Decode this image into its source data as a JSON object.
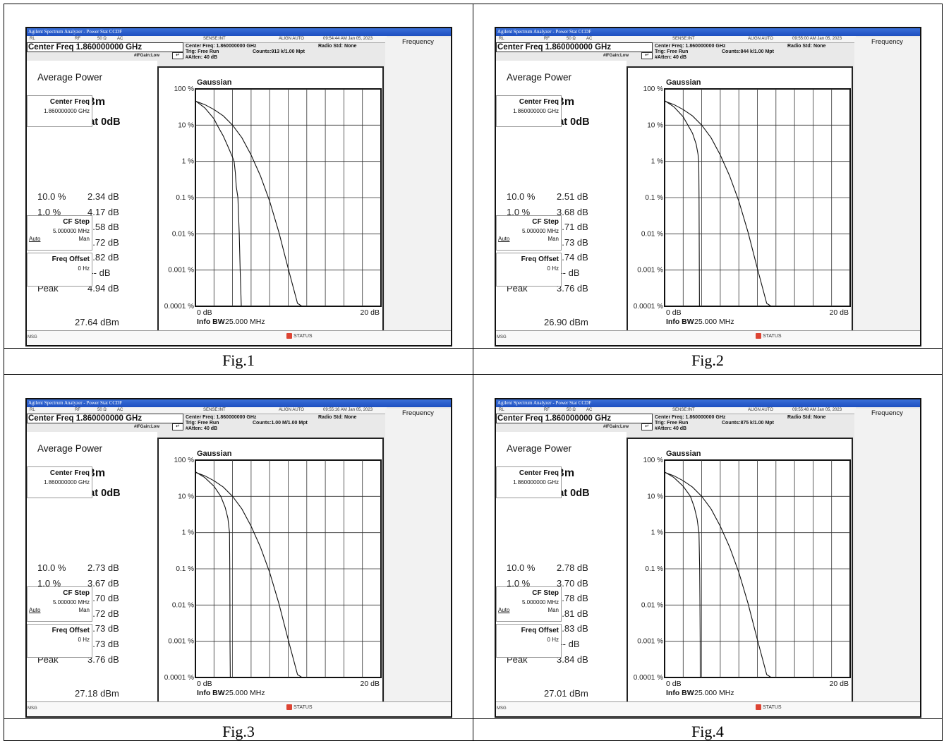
{
  "figures": [
    {
      "caption": "Fig.1",
      "window_title": "Agilent Spectrum Analyzer - Power Stat CCDF",
      "status": {
        "rl": "RL",
        "rf": "RF",
        "imp": "50 Ω",
        "ac": "AC",
        "sense": "SENSE:INT",
        "align": "ALIGN AUTO",
        "time": "09:54:44 AM Jan 05, 2023"
      },
      "center_freq_box": "Center Freq 1.860000000 GHz",
      "header": {
        "center_freq": "Center Freq: 1.860000000 GHz",
        "trig": "Trig: Free Run",
        "atten": "#Atten: 40 dB",
        "counts": "Counts:913 k/1.00 Mpt",
        "radio_std": "Radio Std: None",
        "ifgain": "#IFGain:Low"
      },
      "average_power_label": "Average Power",
      "average_power": "22.70 dBm",
      "pct_at_0db": "47.14 % at 0dB",
      "table": [
        {
          "k": "10.0 %",
          "v": "2.34 dB"
        },
        {
          "k": "1.0 %",
          "v": "4.17 dB"
        },
        {
          "k": "0.1 %",
          "v": "4.58 dB"
        },
        {
          "k": "0.01 %",
          "v": "4.72 dB"
        },
        {
          "k": "0.001 %",
          "v": "4.82 dB"
        },
        {
          "k": "0.0001 %",
          "v": "--- dB"
        },
        {
          "k": "Peak",
          "v": "4.94 dB"
        }
      ],
      "peak_dbm": "27.64 dBm",
      "plot": {
        "gaussian_label": "Gaussian",
        "y_ticks": [
          "100 %",
          "10 %",
          "1 %",
          "0.1 %",
          "0.01 %",
          "0.001 %",
          "0.0001 %"
        ],
        "x_left": "0 dB",
        "x_right": "20 dB",
        "info_bw_label": "Info BW",
        "info_bw_value": "25.000 MHz"
      },
      "softkeys": {
        "menu": "Frequency",
        "center_freq": "Center Freq",
        "center_freq_val": "1.860000000 GHz",
        "cf_step": "CF Step",
        "cf_step_val": "5.000000 MHz",
        "auto": "Auto",
        "man": "Man",
        "freq_offset": "Freq Offset",
        "freq_offset_val": "0 Hz"
      },
      "msg": "MSG",
      "status_btn": "STATUS",
      "chart_data": {
        "type": "line",
        "xlabel": "Info BW 25.000 MHz",
        "xlim": [
          0,
          20
        ],
        "y_scale": "log",
        "ylim_percent": [
          0.0001,
          100
        ],
        "series": [
          {
            "name": "Gaussian",
            "x": [
              0,
              1,
              2,
              3,
              4,
              5,
              6,
              7,
              8,
              9,
              10,
              11,
              11.5
            ],
            "y": [
              46,
              37,
              27,
              18,
              10,
              4.5,
              1.5,
              0.4,
              0.08,
              0.011,
              0.0011,
              0.00012,
              0.0001
            ]
          },
          {
            "x": [
              0,
              1,
              2,
              2.34,
              3,
              3.5,
              4,
              4.17,
              4.3,
              4.4,
              4.58,
              4.72,
              4.82,
              4.94
            ],
            "y": [
              47.14,
              30,
              15,
              10,
              5,
              2.6,
              1.3,
              1.0,
              0.5,
              0.2,
              0.1,
              0.01,
              0.001,
              0.0001
            ]
          }
        ]
      }
    },
    {
      "caption": "Fig.2",
      "window_title": "Agilent Spectrum Analyzer - Power Stat CCDF",
      "status": {
        "rl": "RL",
        "rf": "RF",
        "imp": "50 Ω",
        "ac": "AC",
        "sense": "SENSE:INT",
        "align": "ALIGN AUTO",
        "time": "09:55:00 AM Jan 05, 2023"
      },
      "center_freq_box": "Center Freq 1.860000000 GHz",
      "header": {
        "center_freq": "Center Freq: 1.860000000 GHz",
        "trig": "Trig: Free Run",
        "atten": "#Atten: 40 dB",
        "counts": "Counts:844 k/1.00 Mpt",
        "radio_std": "Radio Std: None",
        "ifgain": "#IFGain:Low"
      },
      "average_power_label": "Average Power",
      "average_power": "23.14 dBm",
      "pct_at_0db": "47.41 % at 0dB",
      "table": [
        {
          "k": "10.0 %",
          "v": "2.51 dB"
        },
        {
          "k": "1.0 %",
          "v": "3.68 dB"
        },
        {
          "k": "0.1 %",
          "v": "3.71 dB"
        },
        {
          "k": "0.01 %",
          "v": "3.73 dB"
        },
        {
          "k": "0.001 %",
          "v": "3.74 dB"
        },
        {
          "k": "0.0001 %",
          "v": "--- dB"
        },
        {
          "k": "Peak",
          "v": "3.76 dB"
        }
      ],
      "peak_dbm": "26.90 dBm",
      "plot": {
        "gaussian_label": "Gaussian",
        "y_ticks": [
          "100 %",
          "10 %",
          "1 %",
          "0.1 %",
          "0.01 %",
          "0.001 %",
          "0.0001 %"
        ],
        "x_left": "0 dB",
        "x_right": "20 dB",
        "info_bw_label": "Info BW",
        "info_bw_value": "25.000 MHz"
      },
      "softkeys": {
        "menu": "Frequency",
        "center_freq": "Center Freq",
        "center_freq_val": "1.860000000 GHz",
        "cf_step": "CF Step",
        "cf_step_val": "5.000000 MHz",
        "auto": "Auto",
        "man": "Man",
        "freq_offset": "Freq Offset",
        "freq_offset_val": "0 Hz"
      },
      "msg": "MSG",
      "status_btn": "STATUS",
      "chart_data": {
        "type": "line",
        "xlabel": "Info BW 25.000 MHz",
        "xlim": [
          0,
          20
        ],
        "y_scale": "log",
        "ylim_percent": [
          0.0001,
          100
        ],
        "series": [
          {
            "name": "Gaussian",
            "x": [
              0,
              1,
              2,
              3,
              4,
              5,
              6,
              7,
              8,
              9,
              10,
              11,
              11.5
            ],
            "y": [
              46,
              37,
              27,
              18,
              10,
              4.5,
              1.5,
              0.4,
              0.08,
              0.011,
              0.0011,
              0.00012,
              0.0001
            ]
          },
          {
            "x": [
              0,
              1,
              2,
              2.51,
              3,
              3.4,
              3.6,
              3.68,
              3.71,
              3.73,
              3.74,
              3.76
            ],
            "y": [
              47.41,
              32,
              17,
              10,
              6,
              3,
              1.6,
              1.0,
              0.1,
              0.01,
              0.001,
              0.0001
            ]
          }
        ]
      }
    },
    {
      "caption": "Fig.3",
      "window_title": "Agilent Spectrum Analyzer - Power Stat CCDF",
      "status": {
        "rl": "RL",
        "rf": "RF",
        "imp": "50 Ω",
        "ac": "AC",
        "sense": "SENSE:INT",
        "align": "ALIGN AUTO",
        "time": "09:55:16 AM Jan 05, 2023"
      },
      "center_freq_box": "Center Freq 1.860000000 GHz",
      "header": {
        "center_freq": "Center Freq: 1.860000000 GHz",
        "trig": "Trig: Free Run",
        "atten": "#Atten: 40 dB",
        "counts": "Counts:1.00 M/1.00 Mpt",
        "radio_std": "Radio Std: None",
        "ifgain": "#IFGain:Low"
      },
      "average_power_label": "Average Power",
      "average_power": "23.42 dBm",
      "pct_at_0db": "47.48 % at 0dB",
      "table": [
        {
          "k": "10.0 %",
          "v": "2.73 dB"
        },
        {
          "k": "1.0 %",
          "v": "3.67 dB"
        },
        {
          "k": "0.1 %",
          "v": "3.70 dB"
        },
        {
          "k": "0.01 %",
          "v": "3.72 dB"
        },
        {
          "k": "0.001 %",
          "v": "3.73 dB"
        },
        {
          "k": "0.0001 %",
          "v": "3.73 dB"
        },
        {
          "k": "Peak",
          "v": "3.76 dB"
        }
      ],
      "peak_dbm": "27.18 dBm",
      "plot": {
        "gaussian_label": "Gaussian",
        "y_ticks": [
          "100 %",
          "10 %",
          "1 %",
          "0.1 %",
          "0.01 %",
          "0.001 %",
          "0.0001 %"
        ],
        "x_left": "0 dB",
        "x_right": "20 dB",
        "info_bw_label": "Info BW",
        "info_bw_value": "25.000 MHz"
      },
      "softkeys": {
        "menu": "Frequency",
        "center_freq": "Center Freq",
        "center_freq_val": "1.860000000 GHz",
        "cf_step": "CF Step",
        "cf_step_val": "5.000000 MHz",
        "auto": "Auto",
        "man": "Man",
        "freq_offset": "Freq Offset",
        "freq_offset_val": "0 Hz"
      },
      "msg": "MSG",
      "status_btn": "STATUS",
      "chart_data": {
        "type": "line",
        "xlabel": "Info BW 25.000 MHz",
        "xlim": [
          0,
          20
        ],
        "y_scale": "log",
        "ylim_percent": [
          0.0001,
          100
        ],
        "series": [
          {
            "name": "Gaussian",
            "x": [
              0,
              1,
              2,
              3,
              4,
              5,
              6,
              7,
              8,
              9,
              10,
              11,
              11.5
            ],
            "y": [
              46,
              37,
              27,
              18,
              10,
              4.5,
              1.5,
              0.4,
              0.08,
              0.011,
              0.0011,
              0.00012,
              0.0001
            ]
          },
          {
            "x": [
              0,
              1,
              2,
              2.73,
              3.2,
              3.5,
              3.67,
              3.7,
              3.72,
              3.73,
              3.76
            ],
            "y": [
              47.48,
              33,
              19,
              10,
              5,
              2.5,
              1.0,
              0.1,
              0.01,
              0.001,
              0.0001
            ]
          }
        ]
      }
    },
    {
      "caption": "Fig.4",
      "window_title": "Agilent Spectrum Analyzer - Power Stat CCDF",
      "status": {
        "rl": "RL",
        "rf": "RF",
        "imp": "50 Ω",
        "ac": "AC",
        "sense": "SENSE:INT",
        "align": "ALIGN AUTO",
        "time": "09:55:48 AM Jan 05, 2023"
      },
      "center_freq_box": "Center Freq 1.860000000 GHz",
      "header": {
        "center_freq": "Center Freq: 1.860000000 GHz",
        "trig": "Trig: Free Run",
        "atten": "#Atten: 40 dB",
        "counts": "Counts:875 k/1.00 Mpt",
        "radio_std": "Radio Std: None",
        "ifgain": "#IFGain:Low"
      },
      "average_power_label": "Average Power",
      "average_power": "23.17 dBm",
      "pct_at_0db": "47.10 % at 0dB",
      "table": [
        {
          "k": "10.0 %",
          "v": "2.78 dB"
        },
        {
          "k": "1.0 %",
          "v": "3.70 dB"
        },
        {
          "k": "0.1 %",
          "v": "3.78 dB"
        },
        {
          "k": "0.01 %",
          "v": "3.81 dB"
        },
        {
          "k": "0.001 %",
          "v": "3.83 dB"
        },
        {
          "k": "0.0001 %",
          "v": "--- dB"
        },
        {
          "k": "Peak",
          "v": "3.84 dB"
        }
      ],
      "peak_dbm": "27.01 dBm",
      "plot": {
        "gaussian_label": "Gaussian",
        "y_ticks": [
          "100 %",
          "10 %",
          "1 %",
          "0.1 %",
          "0.01 %",
          "0.001 %",
          "0.0001 %"
        ],
        "x_left": "0 dB",
        "x_right": "20 dB",
        "info_bw_label": "Info BW",
        "info_bw_value": "25.000 MHz"
      },
      "softkeys": {
        "menu": "Frequency",
        "center_freq": "Center Freq",
        "center_freq_val": "1.860000000 GHz",
        "cf_step": "CF Step",
        "cf_step_val": "5.000000 MHz",
        "auto": "Auto",
        "man": "Man",
        "freq_offset": "Freq Offset",
        "freq_offset_val": "0 Hz"
      },
      "msg": "MSG",
      "status_btn": "STATUS",
      "chart_data": {
        "type": "line",
        "xlabel": "Info BW 25.000 MHz",
        "xlim": [
          0,
          20
        ],
        "y_scale": "log",
        "ylim_percent": [
          0.0001,
          100
        ],
        "series": [
          {
            "name": "Gaussian",
            "x": [
              0,
              1,
              2,
              3,
              4,
              5,
              6,
              7,
              8,
              9,
              10,
              11,
              11.5
            ],
            "y": [
              46,
              37,
              27,
              18,
              10,
              4.5,
              1.5,
              0.4,
              0.08,
              0.011,
              0.0011,
              0.00012,
              0.0001
            ]
          },
          {
            "x": [
              0,
              1,
              2,
              2.78,
              3.2,
              3.5,
              3.7,
              3.78,
              3.81,
              3.83,
              3.84
            ],
            "y": [
              47.1,
              33,
              19,
              10,
              5,
              2.4,
              1.0,
              0.1,
              0.01,
              0.001,
              0.0001
            ]
          }
        ]
      }
    }
  ]
}
